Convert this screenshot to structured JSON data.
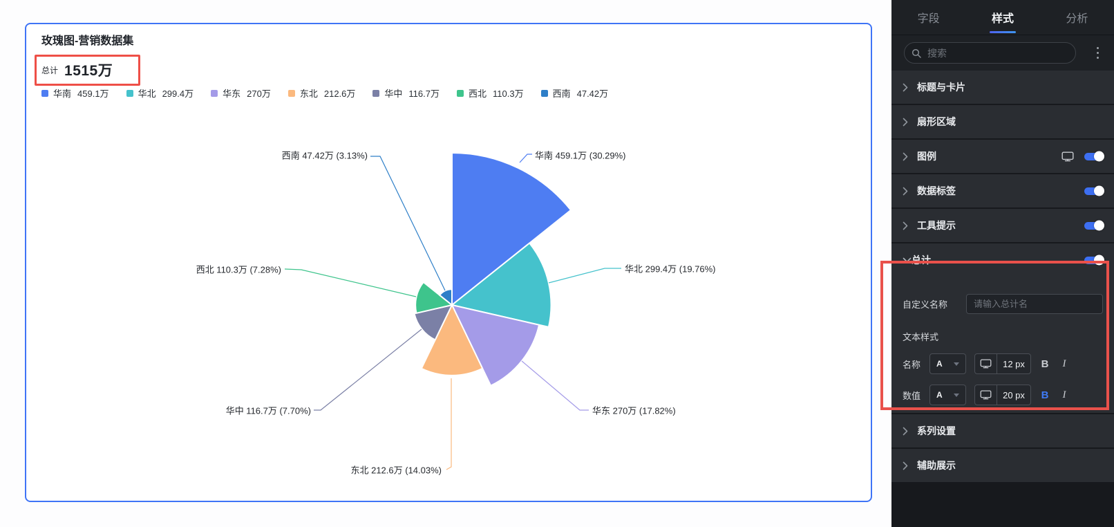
{
  "card": {
    "title": "玫瑰图-营销数据集",
    "total": {
      "label": "总计",
      "value": "1515万"
    }
  },
  "chart_data": {
    "type": "pie",
    "subtype": "nightingale-rose",
    "title": "玫瑰图-营销数据集",
    "total_label": "总计",
    "total_value": "1515万",
    "categories": [
      "华南",
      "华北",
      "华东",
      "东北",
      "华中",
      "西北",
      "西南"
    ],
    "values": [
      459.1,
      299.4,
      270,
      212.6,
      116.7,
      110.3,
      47.42
    ],
    "unit": "万",
    "slices": [
      {
        "name": "华南",
        "value": 459.1,
        "display": "459.1万",
        "pct": "30.29%",
        "color": "#4e7df2"
      },
      {
        "name": "华北",
        "value": 299.4,
        "display": "299.4万",
        "pct": "19.76%",
        "color": "#45c2cc"
      },
      {
        "name": "华东",
        "value": 270,
        "display": "270万",
        "pct": "17.82%",
        "color": "#a49be8"
      },
      {
        "name": "东北",
        "value": 212.6,
        "display": "212.6万",
        "pct": "14.03%",
        "color": "#fbb97e"
      },
      {
        "name": "华中",
        "value": 116.7,
        "display": "116.7万",
        "pct": "7.70%",
        "color": "#7b80a6"
      },
      {
        "name": "西北",
        "value": 110.3,
        "display": "110.3万",
        "pct": "7.28%",
        "color": "#3ec48c"
      },
      {
        "name": "西南",
        "value": 47.42,
        "display": "47.42万",
        "pct": "3.13%",
        "color": "#2e7fc8"
      }
    ],
    "layout_hints": {
      "equal_angles": true,
      "radius_by_value": true,
      "start_angle_deg": 0,
      "clockwise": true,
      "legend_position": "top"
    }
  },
  "panel": {
    "tabs": [
      {
        "label": "字段",
        "active": false
      },
      {
        "label": "样式",
        "active": true
      },
      {
        "label": "分析",
        "active": false
      }
    ],
    "search_placeholder": "搜索",
    "sections": [
      {
        "label": "标题与卡片",
        "monitor": false,
        "toggle": false
      },
      {
        "label": "扇形区域",
        "monitor": false,
        "toggle": false
      },
      {
        "label": "图例",
        "monitor": true,
        "toggle": true
      },
      {
        "label": "数据标签",
        "monitor": false,
        "toggle": true
      },
      {
        "label": "工具提示",
        "monitor": false,
        "toggle": true
      }
    ],
    "total_section": {
      "title": "总计",
      "toggle_on": true,
      "custom_name_label": "自定义名称",
      "custom_name_placeholder": "请输入总计名",
      "text_style_label": "文本样式",
      "rows": [
        {
          "label": "名称",
          "font_button": "A",
          "size": "12 px",
          "bold_label": "B",
          "italic_label": "I",
          "bold_active": false,
          "italic_active": false
        },
        {
          "label": "数值",
          "font_button": "A",
          "size": "20 px",
          "bold_label": "B",
          "italic_label": "I",
          "bold_active": true,
          "italic_active": false
        }
      ]
    },
    "sections_bottom": [
      {
        "label": "系列设置"
      },
      {
        "label": "辅助展示"
      }
    ]
  },
  "colors": {
    "accent_blue": "#3d6ff2",
    "card_border": "#3f74f6",
    "annotation_red": "#ee4f47",
    "panel_row_bg": "#2a2d32",
    "panel_bg": "#17191d"
  }
}
